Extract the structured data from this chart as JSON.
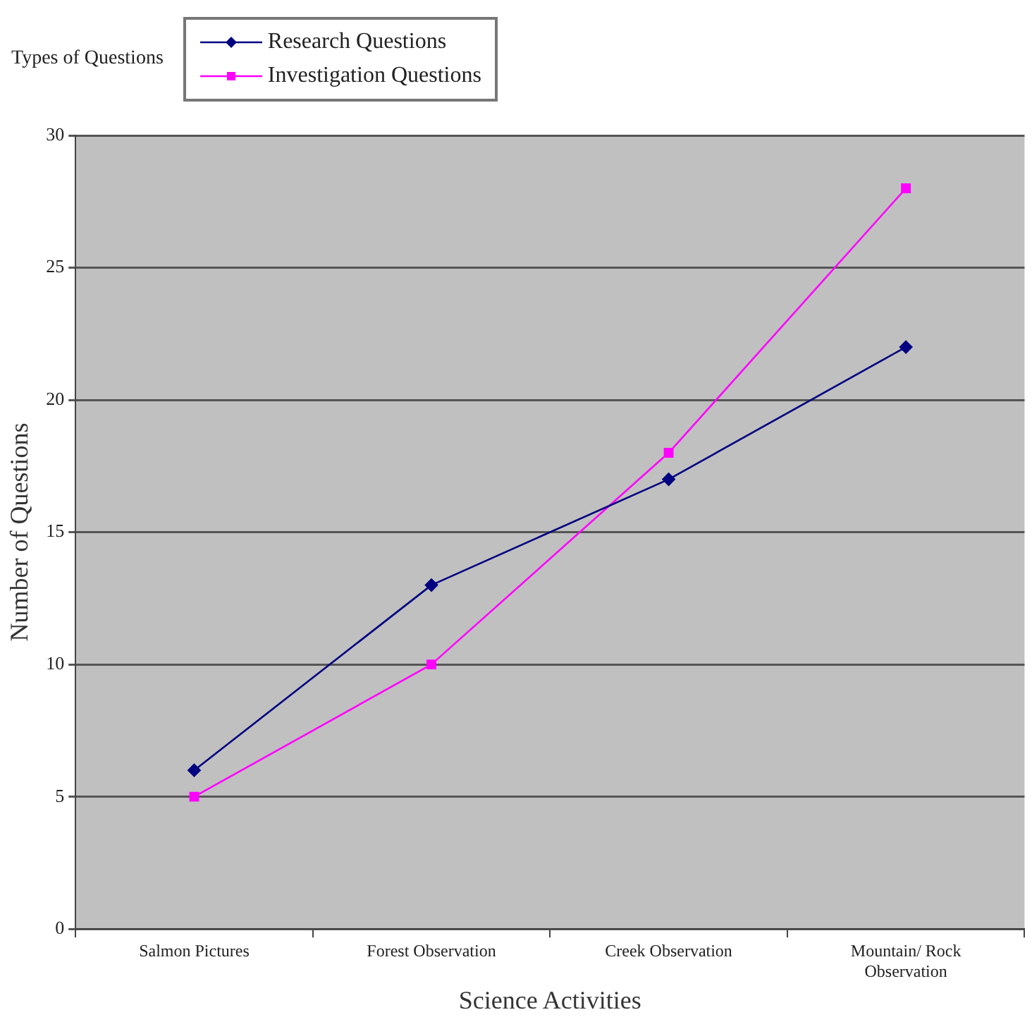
{
  "chart_data": {
    "type": "line",
    "xlabel": "Science Activities",
    "ylabel": "Number of Questions",
    "legend_title": "Types of Questions",
    "legend": "top left",
    "categories": [
      "Salmon Pictures",
      "Forest Observation",
      "Creek Observation",
      "Mountain/ Rock Observation"
    ],
    "series": [
      {
        "name": "Research Questions",
        "color": "#000080",
        "marker": "diamond",
        "values": [
          6,
          13,
          17,
          22
        ]
      },
      {
        "name": "Investigation Questions",
        "color": "#ff00ff",
        "marker": "square",
        "values": [
          5,
          10,
          18,
          28
        ]
      }
    ],
    "ylim": [
      0,
      30
    ],
    "yticks": [
      0,
      5,
      10,
      15,
      20,
      25,
      30
    ],
    "grid": "y"
  }
}
